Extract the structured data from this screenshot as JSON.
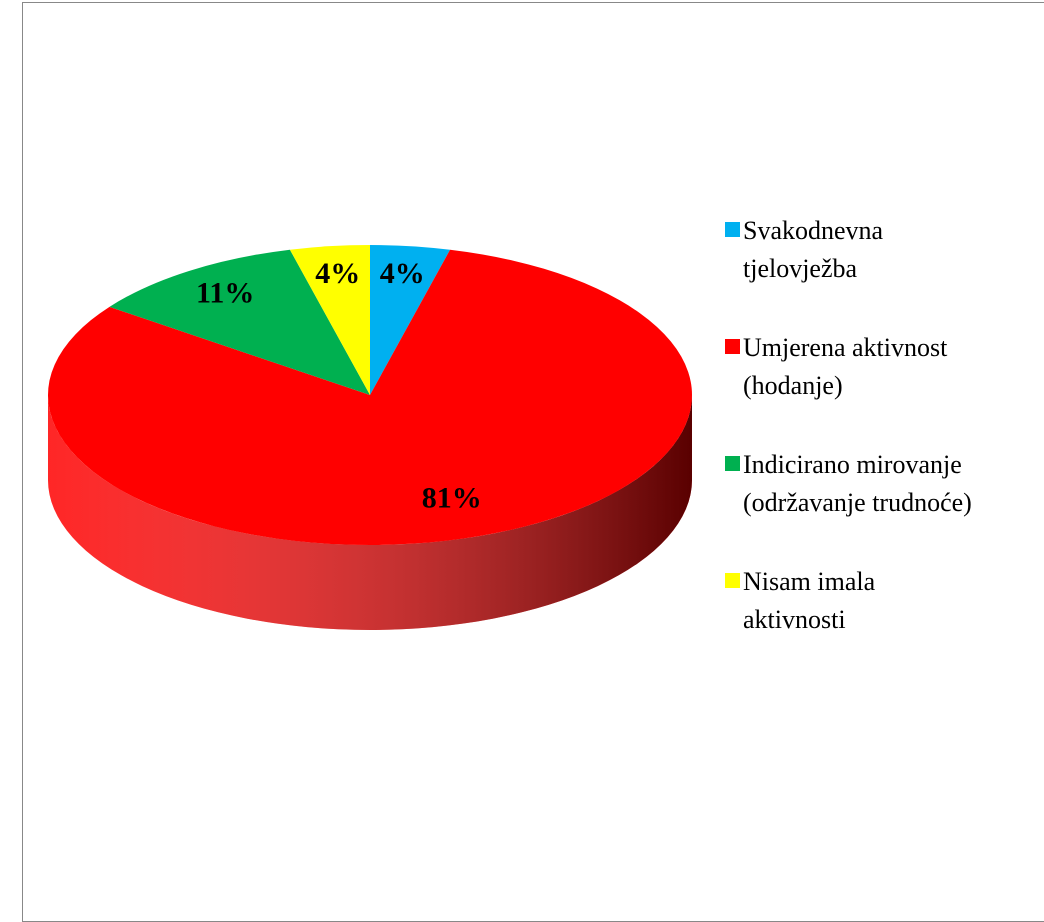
{
  "chart_data": {
    "type": "pie",
    "categories": [
      "Svakodnevna\ntjelovježba",
      "Umjerena aktivnost\n(hodanje)",
      "Indicirano mirovanje\n(održavanje trudnoće)",
      "Nisam imala\naktivnosti"
    ],
    "values": [
      4,
      81,
      11,
      4
    ],
    "value_labels": [
      "4%",
      "81%",
      "11%",
      "4%"
    ],
    "colors": [
      "#00b0f0",
      "#ff0000",
      "#00b050",
      "#ffff00"
    ],
    "legend": "right"
  }
}
